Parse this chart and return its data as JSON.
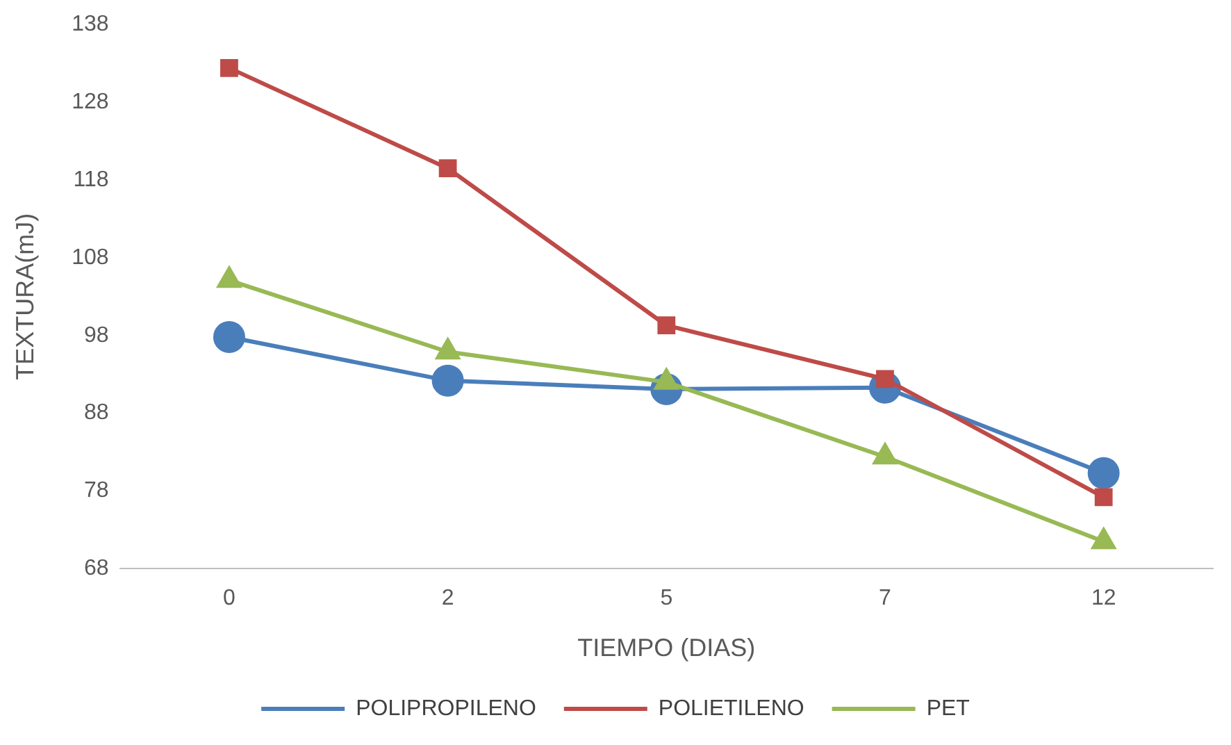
{
  "chart_data": {
    "type": "line",
    "xlabel": "TIEMPO (DIAS)",
    "ylabel": "TEXTURA(mJ)",
    "categories": [
      "0",
      "2",
      "5",
      "7",
      "12"
    ],
    "ylim": [
      68,
      138
    ],
    "yticks": [
      68,
      78,
      88,
      98,
      108,
      118,
      128,
      138
    ],
    "grid": false,
    "legend": "bottom",
    "line_style": "solid",
    "series": [
      {
        "name": "POLIPROPILENO",
        "color": "#4a7ebb",
        "marker": "circle",
        "values": [
          97.8,
          92.2,
          91.1,
          91.3,
          80.3
        ]
      },
      {
        "name": "POLIETILENO",
        "color": "#be4b48",
        "marker": "square",
        "values": [
          132.4,
          119.5,
          99.3,
          92.4,
          77.2
        ]
      },
      {
        "name": "PET",
        "color": "#98b954",
        "marker": "triangle",
        "values": [
          105.1,
          95.9,
          92.0,
          82.4,
          71.5
        ]
      }
    ]
  }
}
